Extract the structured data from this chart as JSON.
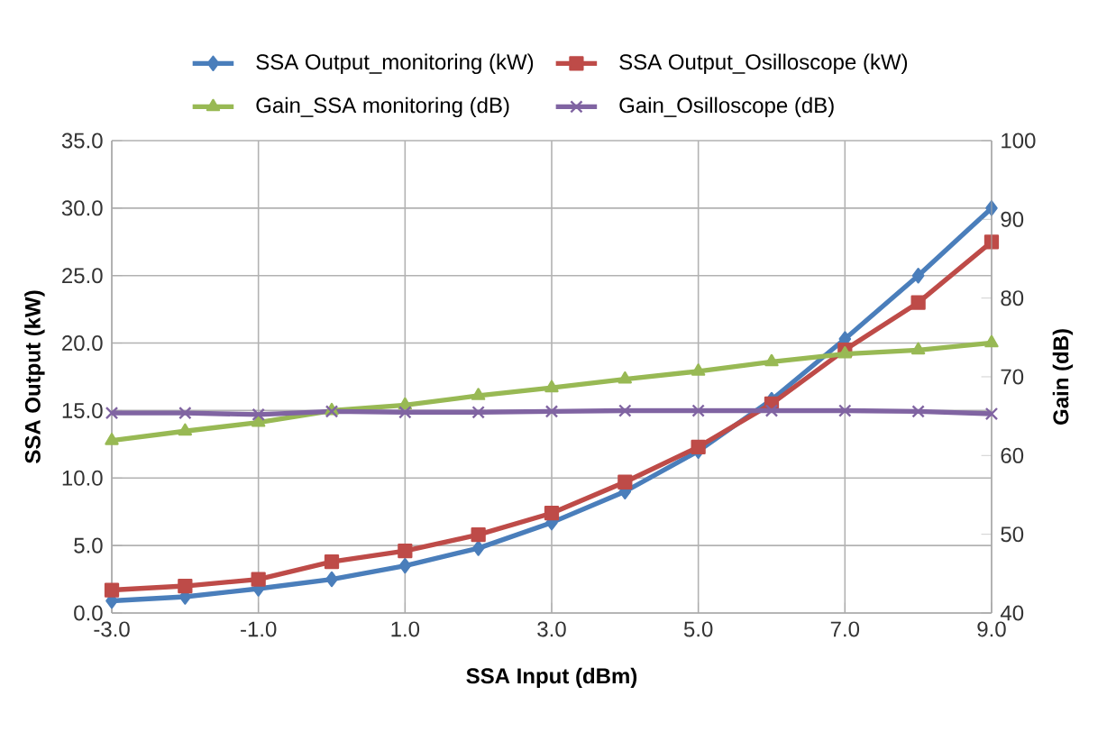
{
  "chart_data": {
    "type": "line",
    "xlabel": "SSA Input  (dBm)",
    "ylabel": "SSA Output (kW)",
    "y2label": "Gain (dB)",
    "x": [
      -3,
      -2,
      -1,
      0,
      1,
      2,
      3,
      4,
      5,
      6,
      7,
      8,
      9
    ],
    "xlim": [
      -3,
      9
    ],
    "xticks": [
      {
        "value": -3,
        "label": "-3.0"
      },
      {
        "value": -1,
        "label": "-1.0"
      },
      {
        "value": 1,
        "label": "1.0"
      },
      {
        "value": 3,
        "label": "3.0"
      },
      {
        "value": 5,
        "label": "5.0"
      },
      {
        "value": 7,
        "label": "7.0"
      },
      {
        "value": 9,
        "label": "9.0"
      }
    ],
    "ylim": [
      0,
      35
    ],
    "yticks": [
      {
        "value": 0,
        "label": "0.0"
      },
      {
        "value": 5,
        "label": "5.0"
      },
      {
        "value": 10,
        "label": "10.0"
      },
      {
        "value": 15,
        "label": "15.0"
      },
      {
        "value": 20,
        "label": "20.0"
      },
      {
        "value": 25,
        "label": "25.0"
      },
      {
        "value": 30,
        "label": "30.0"
      },
      {
        "value": 35,
        "label": "35.0"
      }
    ],
    "y2lim": [
      40,
      100
    ],
    "y2ticks": [
      40,
      50,
      60,
      70,
      80,
      90,
      100
    ],
    "grid": true,
    "legend": "top",
    "series": [
      {
        "name": "SSA Output_monitoring  (kW)",
        "color": "#4a7ebb",
        "marker": "diamond",
        "values": [
          0.9,
          1.2,
          1.8,
          2.5,
          3.5,
          4.8,
          6.7,
          9.0,
          12.0,
          15.8,
          20.3,
          25.0,
          30.0
        ]
      },
      {
        "name": "SSA Output_Osilloscope (kW)",
        "color": "#be4b48",
        "marker": "square",
        "values": [
          1.7,
          2.0,
          2.5,
          3.8,
          4.6,
          5.8,
          7.4,
          9.7,
          12.3,
          15.5,
          19.5,
          23.0,
          27.5
        ]
      },
      {
        "name": "Gain_SSA monitoring  (dB)",
        "color": "#98b954",
        "marker": "triangle",
        "axis": "y2",
        "values": [
          61.9,
          63.1,
          64.2,
          65.7,
          66.4,
          67.6,
          68.6,
          69.7,
          70.7,
          71.9,
          72.9,
          73.4,
          74.3
        ]
      },
      {
        "name": "Gain_Osilloscope (dB)",
        "color": "#8064a2",
        "marker": "cross",
        "axis": "y2",
        "values": [
          65.4,
          65.4,
          65.2,
          65.6,
          65.5,
          65.5,
          65.6,
          65.7,
          65.7,
          65.7,
          65.7,
          65.6,
          65.3
        ]
      }
    ]
  }
}
